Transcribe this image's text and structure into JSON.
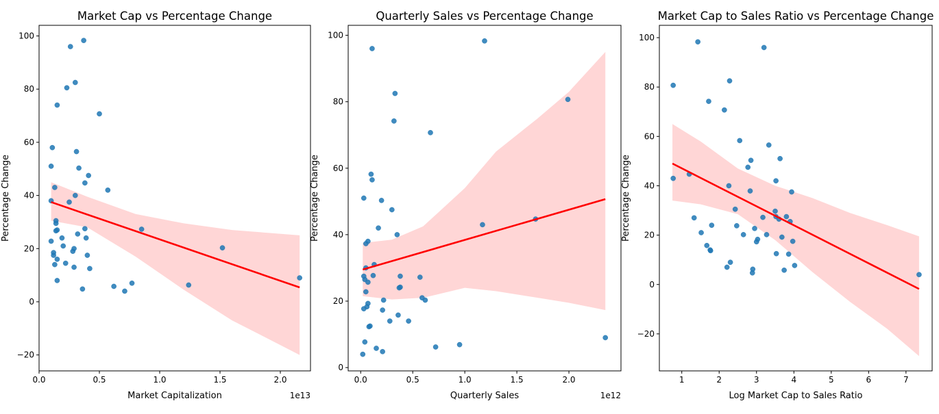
{
  "figure": {
    "background": "#ffffff"
  },
  "style": {
    "point_color": "#1f77b4",
    "line_color": "#ff0000",
    "band_color": "#ffd6d6"
  },
  "chart_data": [
    {
      "type": "scatter",
      "title": "Market Cap vs Percentage Change",
      "xlabel": "Market Capitalization",
      "ylabel": "Percentage Change",
      "x_exponent_label": "1e13",
      "x_scale_factor": 10000000000000,
      "xlim": [
        0,
        22500000000000
      ],
      "ylim": [
        -26,
        104
      ],
      "xticks": [
        0,
        5000000000000,
        10000000000000,
        15000000000000,
        20000000000000
      ],
      "xtick_labels": [
        "0.0",
        "0.5",
        "1.0",
        "1.5",
        "2.0"
      ],
      "yticks": [
        -20,
        0,
        20,
        40,
        60,
        80,
        100
      ],
      "ytick_labels": [
        "−20",
        "0",
        "20",
        "40",
        "60",
        "80",
        "100"
      ],
      "grid": false,
      "regression": {
        "line": [
          [
            1000000000000,
            37.5
          ],
          [
            21600000000000,
            5.4
          ]
        ],
        "ci_upper": [
          [
            1000000000000,
            45.0
          ],
          [
            4000000000000,
            39.5
          ],
          [
            8000000000000,
            33.0
          ],
          [
            12000000000000,
            29.5
          ],
          [
            16000000000000,
            27.0
          ],
          [
            21600000000000,
            25.0
          ]
        ],
        "ci_lower": [
          [
            1000000000000,
            30.5
          ],
          [
            4000000000000,
            28.0
          ],
          [
            8000000000000,
            17.0
          ],
          [
            12000000000000,
            4.5
          ],
          [
            16000000000000,
            -7.0
          ],
          [
            21600000000000,
            -20.0
          ]
        ]
      },
      "points": [
        [
          1000000000000,
          51
        ],
        [
          1100000000000,
          58
        ],
        [
          1000000000000,
          38
        ],
        [
          1000000000000,
          22.8
        ],
        [
          1200000000000,
          18.5
        ],
        [
          1200000000000,
          17.5
        ],
        [
          1300000000000,
          43
        ],
        [
          1400000000000,
          30.5
        ],
        [
          1400000000000,
          29.5
        ],
        [
          1400000000000,
          26.7
        ],
        [
          1500000000000,
          27
        ],
        [
          1300000000000,
          14
        ],
        [
          1500000000000,
          16
        ],
        [
          1500000000000,
          8
        ],
        [
          1500000000000,
          74
        ],
        [
          1900000000000,
          24
        ],
        [
          2000000000000,
          21
        ],
        [
          2200000000000,
          14.5
        ],
        [
          2300000000000,
          80.5
        ],
        [
          2500000000000,
          37.5
        ],
        [
          2600000000000,
          96
        ],
        [
          2800000000000,
          19
        ],
        [
          2900000000000,
          13
        ],
        [
          2900000000000,
          20
        ],
        [
          3000000000000,
          40
        ],
        [
          3000000000000,
          82.5
        ],
        [
          3100000000000,
          56.5
        ],
        [
          3200000000000,
          25.5
        ],
        [
          3300000000000,
          50.3
        ],
        [
          3600000000000,
          4.8
        ],
        [
          3700000000000,
          98.3
        ],
        [
          3800000000000,
          44.7
        ],
        [
          3800000000000,
          27.5
        ],
        [
          3900000000000,
          24
        ],
        [
          4000000000000,
          17.5
        ],
        [
          4100000000000,
          47.5
        ],
        [
          4200000000000,
          12.5
        ],
        [
          5000000000000,
          70.7
        ],
        [
          5700000000000,
          42
        ],
        [
          6200000000000,
          5.8
        ],
        [
          7100000000000,
          4
        ],
        [
          7700000000000,
          7
        ],
        [
          8500000000000,
          27.3
        ],
        [
          12400000000000,
          6.3
        ],
        [
          15200000000000,
          20.3
        ],
        [
          21600000000000,
          9
        ]
      ]
    },
    {
      "type": "scatter",
      "title": "Quarterly Sales vs Percentage Change",
      "xlabel": "Quarterly Sales",
      "ylabel": "Percentage Change",
      "x_exponent_label": "1e12",
      "x_scale_factor": 1000000000000,
      "xlim": [
        -120000000000,
        2500000000000
      ],
      "ylim": [
        -1,
        103
      ],
      "xticks": [
        0,
        500000000000,
        1000000000000,
        1500000000000,
        2000000000000
      ],
      "xtick_labels": [
        "0.0",
        "0.5",
        "1.0",
        "1.5",
        "2.0"
      ],
      "yticks": [
        0,
        20,
        40,
        60,
        80,
        100
      ],
      "ytick_labels": [
        "0",
        "20",
        "40",
        "60",
        "80",
        "100"
      ],
      "grid": false,
      "regression": {
        "line": [
          [
            20000000000,
            29.5
          ],
          [
            2350000000000,
            50.7
          ]
        ],
        "ci_upper": [
          [
            20000000000,
            37.5
          ],
          [
            300000000000,
            38.5
          ],
          [
            600000000000,
            42.5
          ],
          [
            1000000000000,
            54
          ],
          [
            1300000000000,
            65
          ],
          [
            1700000000000,
            75
          ],
          [
            2000000000000,
            83
          ],
          [
            2350000000000,
            95
          ]
        ],
        "ci_lower": [
          [
            20000000000,
            21.5
          ],
          [
            300000000000,
            20.5
          ],
          [
            600000000000,
            21
          ],
          [
            1000000000000,
            24
          ],
          [
            1300000000000,
            23
          ],
          [
            1700000000000,
            21
          ],
          [
            2000000000000,
            19.5
          ],
          [
            2350000000000,
            17.3
          ]
        ]
      },
      "points": [
        [
          20000000000,
          4
        ],
        [
          30000000000,
          17.7
        ],
        [
          30000000000,
          27.5
        ],
        [
          40000000000,
          7.7
        ],
        [
          30000000000,
          51
        ],
        [
          40000000000,
          26.5
        ],
        [
          50000000000,
          22.8
        ],
        [
          50000000000,
          30
        ],
        [
          50000000000,
          37.3
        ],
        [
          60000000000,
          18.3
        ],
        [
          70000000000,
          19.3
        ],
        [
          70000000000,
          25.7
        ],
        [
          70000000000,
          38
        ],
        [
          80000000000,
          12.3
        ],
        [
          90000000000,
          12.5
        ],
        [
          100000000000,
          58.2
        ],
        [
          110000000000,
          56.5
        ],
        [
          110000000000,
          96
        ],
        [
          120000000000,
          27.7
        ],
        [
          130000000000,
          31
        ],
        [
          150000000000,
          5.8
        ],
        [
          170000000000,
          42
        ],
        [
          200000000000,
          50.3
        ],
        [
          210000000000,
          17.3
        ],
        [
          210000000000,
          4.8
        ],
        [
          220000000000,
          20.3
        ],
        [
          280000000000,
          14
        ],
        [
          300000000000,
          47.5
        ],
        [
          320000000000,
          74.2
        ],
        [
          330000000000,
          82.5
        ],
        [
          350000000000,
          40
        ],
        [
          360000000000,
          15.8
        ],
        [
          370000000000,
          24
        ],
        [
          380000000000,
          24.2
        ],
        [
          380000000000,
          27.5
        ],
        [
          460000000000,
          14
        ],
        [
          570000000000,
          27.2
        ],
        [
          590000000000,
          21
        ],
        [
          620000000000,
          20.3
        ],
        [
          670000000000,
          70.7
        ],
        [
          720000000000,
          6.2
        ],
        [
          950000000000,
          6.9
        ],
        [
          1170000000000,
          43
        ],
        [
          1190000000000,
          98.3
        ],
        [
          1680000000000,
          44.7
        ],
        [
          1990000000000,
          80.7
        ],
        [
          2350000000000,
          9
        ]
      ]
    },
    {
      "type": "scatter",
      "title": "Market Cap to Sales Ratio vs Percentage Change",
      "xlabel": "Log Market Cap to Sales Ratio",
      "ylabel": "Percentage Change",
      "xlim": [
        0.4,
        7.7
      ],
      "ylim": [
        -35,
        105
      ],
      "xticks": [
        1,
        2,
        3,
        4,
        5,
        6,
        7
      ],
      "xtick_labels": [
        "1",
        "2",
        "3",
        "4",
        "5",
        "6",
        "7"
      ],
      "yticks": [
        -20,
        0,
        20,
        40,
        60,
        80,
        100
      ],
      "ytick_labels": [
        "−20",
        "0",
        "20",
        "40",
        "60",
        "80",
        "100"
      ],
      "grid": false,
      "regression": {
        "line": [
          [
            0.75,
            49
          ],
          [
            7.35,
            -1.8
          ]
        ],
        "ci_upper": [
          [
            0.75,
            65
          ],
          [
            1.5,
            58
          ],
          [
            2.5,
            47
          ],
          [
            3.5,
            40
          ],
          [
            4.5,
            35
          ],
          [
            5.5,
            29
          ],
          [
            6.5,
            24
          ],
          [
            7.35,
            19.5
          ]
        ],
        "ci_lower": [
          [
            0.75,
            34
          ],
          [
            1.5,
            32.5
          ],
          [
            2.5,
            28.5
          ],
          [
            3.5,
            18
          ],
          [
            4.5,
            5
          ],
          [
            5.5,
            -7
          ],
          [
            6.5,
            -18
          ],
          [
            7.35,
            -29
          ]
        ]
      },
      "points": [
        [
          0.77,
          43
        ],
        [
          0.77,
          80.7
        ],
        [
          1.2,
          44.7
        ],
        [
          1.33,
          27
        ],
        [
          1.43,
          98.3
        ],
        [
          1.52,
          21
        ],
        [
          1.67,
          15.8
        ],
        [
          1.72,
          74.2
        ],
        [
          1.76,
          14
        ],
        [
          1.77,
          13.7
        ],
        [
          1.8,
          24
        ],
        [
          2.14,
          70.7
        ],
        [
          2.21,
          7
        ],
        [
          2.26,
          40
        ],
        [
          2.28,
          82.5
        ],
        [
          2.3,
          9
        ],
        [
          2.43,
          30.5
        ],
        [
          2.47,
          23.8
        ],
        [
          2.55,
          58.3
        ],
        [
          2.65,
          20.2
        ],
        [
          2.77,
          47.5
        ],
        [
          2.83,
          37.9
        ],
        [
          2.85,
          50.3
        ],
        [
          2.89,
          4.7
        ],
        [
          2.9,
          6.2
        ],
        [
          2.95,
          22.7
        ],
        [
          3.0,
          17.3
        ],
        [
          3.03,
          18.3
        ],
        [
          3.17,
          27.2
        ],
        [
          3.27,
          20.2
        ],
        [
          3.33,
          56.5
        ],
        [
          3.5,
          29.7
        ],
        [
          3.52,
          42
        ],
        [
          3.52,
          27.5
        ],
        [
          3.53,
          12.5
        ],
        [
          3.6,
          26.5
        ],
        [
          3.63,
          51
        ],
        [
          3.68,
          19.2
        ],
        [
          3.2,
          96
        ],
        [
          3.74,
          5.8
        ],
        [
          3.8,
          27.5
        ],
        [
          3.86,
          12.3
        ],
        [
          3.9,
          25.5
        ],
        [
          3.94,
          37.5
        ],
        [
          3.97,
          17.5
        ],
        [
          4.02,
          7.7
        ],
        [
          7.35,
          4
        ]
      ]
    }
  ]
}
